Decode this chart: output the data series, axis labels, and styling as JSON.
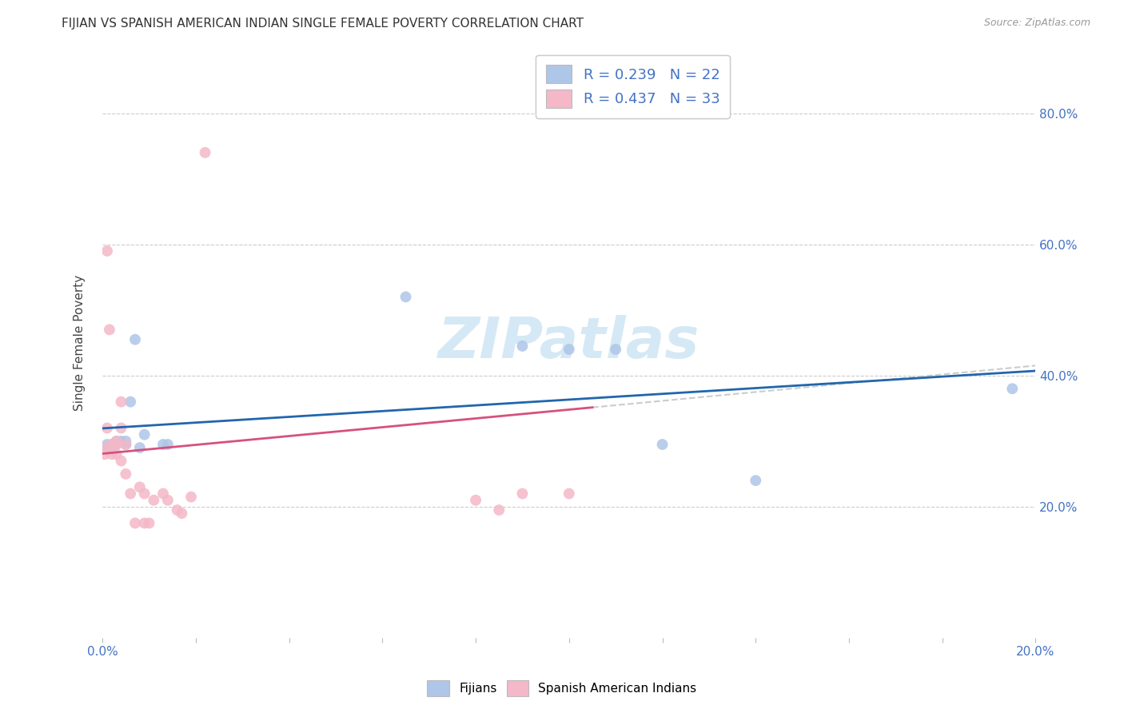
{
  "title": "FIJIAN VS SPANISH AMERICAN INDIAN SINGLE FEMALE POVERTY CORRELATION CHART",
  "source": "Source: ZipAtlas.com",
  "ylabel": "Single Female Poverty",
  "fijian_color": "#aec6e8",
  "fijian_edge_color": "#aec6e8",
  "fijian_line_color": "#2166ac",
  "spanish_color": "#f4b8c8",
  "spanish_edge_color": "#f4b8c8",
  "spanish_line_color": "#d6517d",
  "spanish_dash_color": "#e8a0b8",
  "watermark_color": "#d5e8f5",
  "fijian_x": [
    0.001,
    0.001,
    0.002,
    0.002,
    0.003,
    0.003,
    0.004,
    0.005,
    0.005,
    0.006,
    0.007,
    0.008,
    0.009,
    0.013,
    0.014,
    0.065,
    0.09,
    0.1,
    0.11,
    0.12,
    0.14,
    0.195
  ],
  "fijian_y": [
    0.295,
    0.29,
    0.295,
    0.29,
    0.3,
    0.295,
    0.3,
    0.295,
    0.3,
    0.36,
    0.455,
    0.29,
    0.31,
    0.295,
    0.295,
    0.52,
    0.445,
    0.44,
    0.44,
    0.295,
    0.24,
    0.38
  ],
  "spanish_x": [
    0.0005,
    0.001,
    0.001,
    0.001,
    0.0015,
    0.002,
    0.002,
    0.003,
    0.003,
    0.003,
    0.004,
    0.004,
    0.004,
    0.005,
    0.005,
    0.006,
    0.007,
    0.008,
    0.009,
    0.009,
    0.01,
    0.011,
    0.013,
    0.014,
    0.016,
    0.017,
    0.019,
    0.022,
    0.08,
    0.085,
    0.09,
    0.1,
    0.105
  ],
  "spanish_y": [
    0.28,
    0.59,
    0.32,
    0.29,
    0.47,
    0.28,
    0.295,
    0.295,
    0.28,
    0.3,
    0.36,
    0.32,
    0.27,
    0.295,
    0.25,
    0.22,
    0.175,
    0.23,
    0.22,
    0.175,
    0.175,
    0.21,
    0.22,
    0.21,
    0.195,
    0.19,
    0.215,
    0.74,
    0.21,
    0.195,
    0.22,
    0.22,
    0.8
  ],
  "xlim": [
    0.0,
    0.2
  ],
  "ylim": [
    0.0,
    0.9
  ],
  "yticks": [
    0.2,
    0.4,
    0.6,
    0.8
  ],
  "ytick_labels": [
    "20.0%",
    "40.0%",
    "60.0%",
    "80.0%"
  ],
  "fijian_R": 0.239,
  "fijian_N": 22,
  "spanish_R": 0.437,
  "spanish_N": 33,
  "background_color": "#ffffff",
  "grid_color": "#cccccc",
  "tick_color": "#4472c4",
  "label_color": "#4472c4"
}
